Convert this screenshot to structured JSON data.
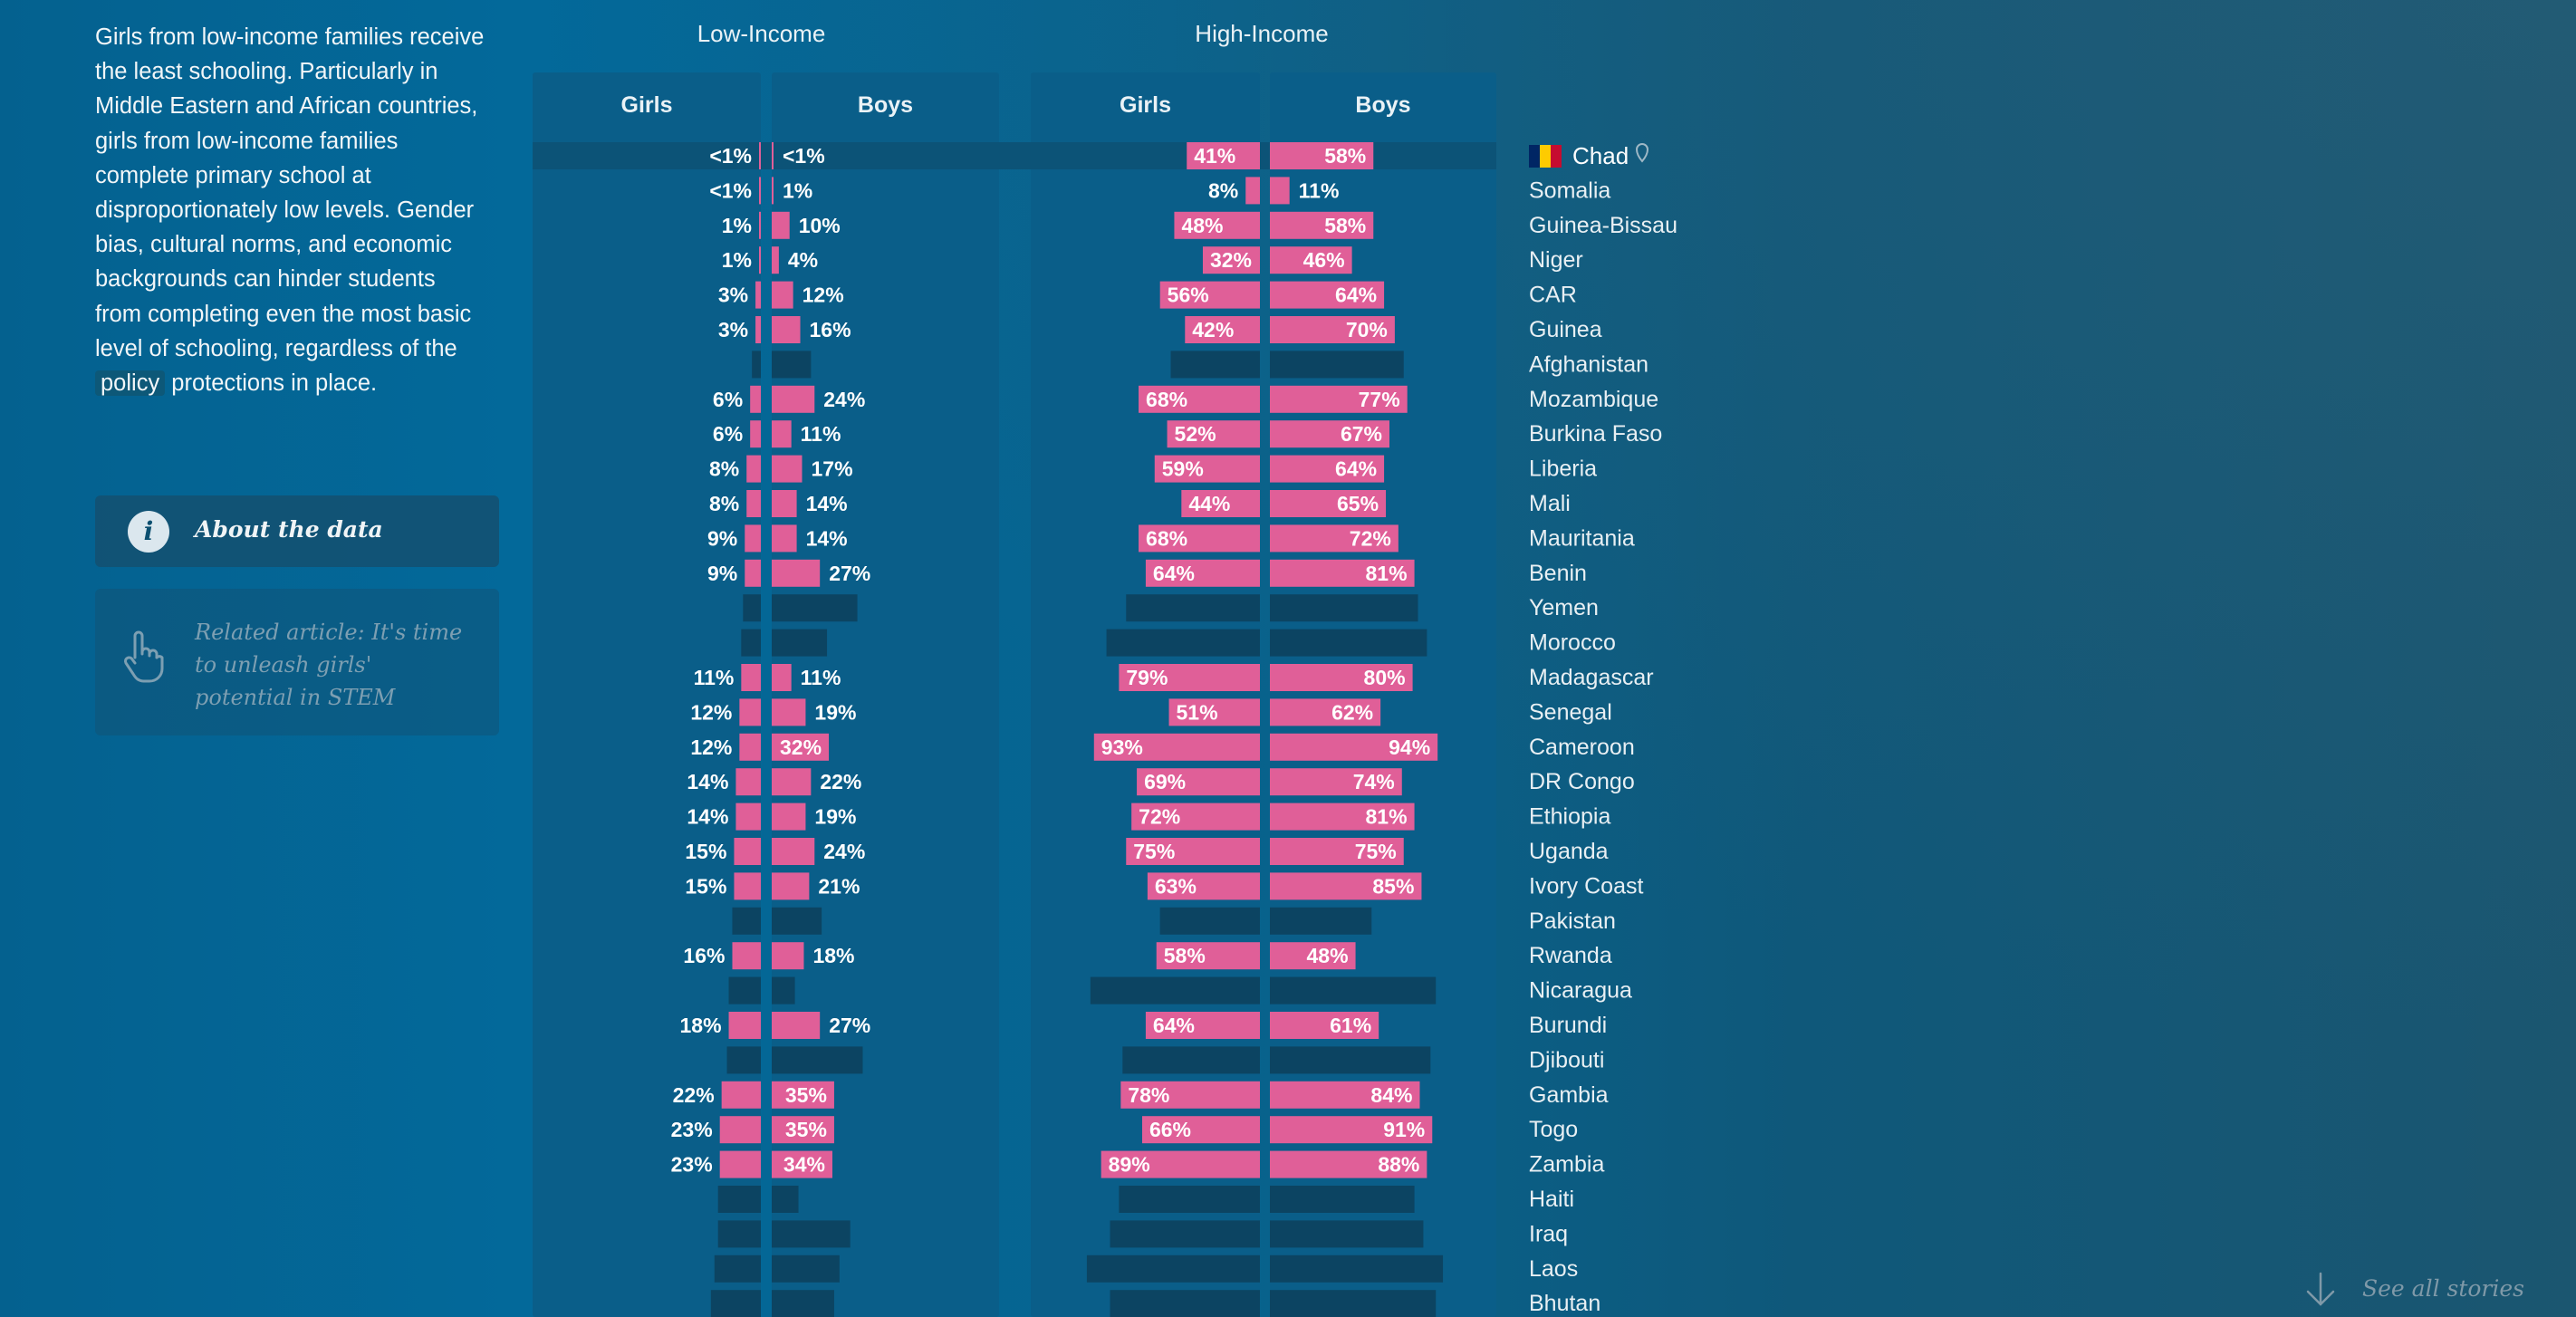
{
  "intro": {
    "text_before": "Girls from low-income families receive the least schooling. Particularly in Middle Eastern and African countries, girls from low-income families complete primary school at disproportionately low levels. Gender bias, cultural norms, and economic backgrounds can hinder students from completing even the most basic level of schooling, regardless of the",
    "highlight": "policy",
    "text_after": "protections in place."
  },
  "about_label": "About the data",
  "related_label": "Related article: It's time to unleash girls' potential in STEM",
  "see_all_label": "See all stories",
  "icons": {
    "about": "info-icon",
    "related": "pointing-hand-icon",
    "see_all": "arrow-down-icon",
    "flag": "chad-flag-icon",
    "marker": "location-pin-icon"
  },
  "colors": {
    "bar": "#e05f98",
    "track": "#0a5e89",
    "missing": "#0c4462",
    "row_highlight": "#0c5377"
  },
  "chart_data": {
    "type": "bar",
    "orientation": "horizontal-butterfly",
    "groups": [
      {
        "name": "Low-Income",
        "series": [
          "Girls",
          "Boys"
        ]
      },
      {
        "name": "High-Income",
        "series": [
          "Girls",
          "Boys"
        ]
      }
    ],
    "value_unit": "%",
    "highlighted_country": "Chad",
    "countries": [
      {
        "name": "Chad",
        "low": {
          "girls": {
            "v": 0.5,
            "label": "<1%"
          },
          "boys": {
            "v": 0.5,
            "label": "<1%"
          }
        },
        "high": {
          "girls": {
            "v": 41,
            "label": "41%"
          },
          "boys": {
            "v": 58,
            "label": "58%"
          }
        }
      },
      {
        "name": "Somalia",
        "low": {
          "girls": {
            "v": 0.5,
            "label": "<1%"
          },
          "boys": {
            "v": 1,
            "label": "1%"
          }
        },
        "high": {
          "girls": {
            "v": 8,
            "label": "8%"
          },
          "boys": {
            "v": 11,
            "label": "11%"
          }
        }
      },
      {
        "name": "Guinea-Bissau",
        "low": {
          "girls": {
            "v": 1,
            "label": "1%"
          },
          "boys": {
            "v": 10,
            "label": "10%"
          }
        },
        "high": {
          "girls": {
            "v": 48,
            "label": "48%"
          },
          "boys": {
            "v": 58,
            "label": "58%"
          }
        }
      },
      {
        "name": "Niger",
        "low": {
          "girls": {
            "v": 1,
            "label": "1%"
          },
          "boys": {
            "v": 4,
            "label": "4%"
          }
        },
        "high": {
          "girls": {
            "v": 32,
            "label": "32%"
          },
          "boys": {
            "v": 46,
            "label": "46%"
          }
        }
      },
      {
        "name": "CAR",
        "low": {
          "girls": {
            "v": 3,
            "label": "3%"
          },
          "boys": {
            "v": 12,
            "label": "12%"
          }
        },
        "high": {
          "girls": {
            "v": 56,
            "label": "56%"
          },
          "boys": {
            "v": 64,
            "label": "64%"
          }
        }
      },
      {
        "name": "Guinea",
        "low": {
          "girls": {
            "v": 3,
            "label": "3%"
          },
          "boys": {
            "v": 16,
            "label": "16%"
          }
        },
        "high": {
          "girls": {
            "v": 42,
            "label": "42%"
          },
          "boys": {
            "v": 70,
            "label": "70%"
          }
        }
      },
      {
        "name": "Afghanistan",
        "missing": true,
        "placeholder": {
          "low_girls": 5,
          "low_boys": 22,
          "high_girls": 50,
          "high_boys": 75
        }
      },
      {
        "name": "Mozambique",
        "low": {
          "girls": {
            "v": 6,
            "label": "6%"
          },
          "boys": {
            "v": 24,
            "label": "24%"
          }
        },
        "high": {
          "girls": {
            "v": 68,
            "label": "68%"
          },
          "boys": {
            "v": 77,
            "label": "77%"
          }
        }
      },
      {
        "name": "Burkina Faso",
        "low": {
          "girls": {
            "v": 6,
            "label": "6%"
          },
          "boys": {
            "v": 11,
            "label": "11%"
          }
        },
        "high": {
          "girls": {
            "v": 52,
            "label": "52%"
          },
          "boys": {
            "v": 67,
            "label": "67%"
          }
        }
      },
      {
        "name": "Liberia",
        "low": {
          "girls": {
            "v": 8,
            "label": "8%"
          },
          "boys": {
            "v": 17,
            "label": "17%"
          }
        },
        "high": {
          "girls": {
            "v": 59,
            "label": "59%"
          },
          "boys": {
            "v": 64,
            "label": "64%"
          }
        }
      },
      {
        "name": "Mali",
        "low": {
          "girls": {
            "v": 8,
            "label": "8%"
          },
          "boys": {
            "v": 14,
            "label": "14%"
          }
        },
        "high": {
          "girls": {
            "v": 44,
            "label": "44%"
          },
          "boys": {
            "v": 65,
            "label": "65%"
          }
        }
      },
      {
        "name": "Mauritania",
        "low": {
          "girls": {
            "v": 9,
            "label": "9%"
          },
          "boys": {
            "v": 14,
            "label": "14%"
          }
        },
        "high": {
          "girls": {
            "v": 68,
            "label": "68%"
          },
          "boys": {
            "v": 72,
            "label": "72%"
          }
        }
      },
      {
        "name": "Benin",
        "low": {
          "girls": {
            "v": 9,
            "label": "9%"
          },
          "boys": {
            "v": 27,
            "label": "27%"
          }
        },
        "high": {
          "girls": {
            "v": 64,
            "label": "64%"
          },
          "boys": {
            "v": 81,
            "label": "81%"
          }
        }
      },
      {
        "name": "Yemen",
        "missing": true,
        "placeholder": {
          "low_girls": 10,
          "low_boys": 48,
          "high_girls": 75,
          "high_boys": 83
        }
      },
      {
        "name": "Morocco",
        "missing": true,
        "placeholder": {
          "low_girls": 11,
          "low_boys": 31,
          "high_girls": 86,
          "high_boys": 88
        }
      },
      {
        "name": "Madagascar",
        "low": {
          "girls": {
            "v": 11,
            "label": "11%"
          },
          "boys": {
            "v": 11,
            "label": "11%"
          }
        },
        "high": {
          "girls": {
            "v": 79,
            "label": "79%"
          },
          "boys": {
            "v": 80,
            "label": "80%"
          }
        }
      },
      {
        "name": "Senegal",
        "low": {
          "girls": {
            "v": 12,
            "label": "12%"
          },
          "boys": {
            "v": 19,
            "label": "19%"
          }
        },
        "high": {
          "girls": {
            "v": 51,
            "label": "51%"
          },
          "boys": {
            "v": 62,
            "label": "62%"
          }
        }
      },
      {
        "name": "Cameroon",
        "low": {
          "girls": {
            "v": 12,
            "label": "12%"
          },
          "boys": {
            "v": 32,
            "label": "32%"
          }
        },
        "high": {
          "girls": {
            "v": 93,
            "label": "93%"
          },
          "boys": {
            "v": 94,
            "label": "94%"
          }
        }
      },
      {
        "name": "DR Congo",
        "low": {
          "girls": {
            "v": 14,
            "label": "14%"
          },
          "boys": {
            "v": 22,
            "label": "22%"
          }
        },
        "high": {
          "girls": {
            "v": 69,
            "label": "69%"
          },
          "boys": {
            "v": 74,
            "label": "74%"
          }
        }
      },
      {
        "name": "Ethiopia",
        "low": {
          "girls": {
            "v": 14,
            "label": "14%"
          },
          "boys": {
            "v": 19,
            "label": "19%"
          }
        },
        "high": {
          "girls": {
            "v": 72,
            "label": "72%"
          },
          "boys": {
            "v": 81,
            "label": "81%"
          }
        }
      },
      {
        "name": "Uganda",
        "low": {
          "girls": {
            "v": 15,
            "label": "15%"
          },
          "boys": {
            "v": 24,
            "label": "24%"
          }
        },
        "high": {
          "girls": {
            "v": 75,
            "label": "75%"
          },
          "boys": {
            "v": 75,
            "label": "75%"
          }
        }
      },
      {
        "name": "Ivory Coast",
        "low": {
          "girls": {
            "v": 15,
            "label": "15%"
          },
          "boys": {
            "v": 21,
            "label": "21%"
          }
        },
        "high": {
          "girls": {
            "v": 63,
            "label": "63%"
          },
          "boys": {
            "v": 85,
            "label": "85%"
          }
        }
      },
      {
        "name": "Pakistan",
        "missing": true,
        "placeholder": {
          "low_girls": 16,
          "low_boys": 28,
          "high_girls": 56,
          "high_boys": 57
        }
      },
      {
        "name": "Rwanda",
        "low": {
          "girls": {
            "v": 16,
            "label": "16%"
          },
          "boys": {
            "v": 18,
            "label": "18%"
          }
        },
        "high": {
          "girls": {
            "v": 58,
            "label": "58%"
          },
          "boys": {
            "v": 48,
            "label": "48%"
          }
        }
      },
      {
        "name": "Nicaragua",
        "missing": true,
        "placeholder": {
          "low_girls": 18,
          "low_boys": 13,
          "high_girls": 95,
          "high_boys": 93
        }
      },
      {
        "name": "Burundi",
        "low": {
          "girls": {
            "v": 18,
            "label": "18%"
          },
          "boys": {
            "v": 27,
            "label": "27%"
          }
        },
        "high": {
          "girls": {
            "v": 64,
            "label": "64%"
          },
          "boys": {
            "v": 61,
            "label": "61%"
          }
        }
      },
      {
        "name": "Djibouti",
        "missing": true,
        "placeholder": {
          "low_girls": 19,
          "low_boys": 51,
          "high_girls": 77,
          "high_boys": 90
        }
      },
      {
        "name": "Gambia",
        "low": {
          "girls": {
            "v": 22,
            "label": "22%"
          },
          "boys": {
            "v": 35,
            "label": "35%"
          }
        },
        "high": {
          "girls": {
            "v": 78,
            "label": "78%"
          },
          "boys": {
            "v": 84,
            "label": "84%"
          }
        }
      },
      {
        "name": "Togo",
        "low": {
          "girls": {
            "v": 23,
            "label": "23%"
          },
          "boys": {
            "v": 35,
            "label": "35%"
          }
        },
        "high": {
          "girls": {
            "v": 66,
            "label": "66%"
          },
          "boys": {
            "v": 91,
            "label": "91%"
          }
        }
      },
      {
        "name": "Zambia",
        "low": {
          "girls": {
            "v": 23,
            "label": "23%"
          },
          "boys": {
            "v": 34,
            "label": "34%"
          }
        },
        "high": {
          "girls": {
            "v": 89,
            "label": "89%"
          },
          "boys": {
            "v": 88,
            "label": "88%"
          }
        }
      },
      {
        "name": "Haiti",
        "missing": true,
        "placeholder": {
          "low_girls": 24,
          "low_boys": 15,
          "high_girls": 79,
          "high_boys": 81
        }
      },
      {
        "name": "Iraq",
        "missing": true,
        "placeholder": {
          "low_girls": 24,
          "low_boys": 44,
          "high_girls": 84,
          "high_boys": 86
        }
      },
      {
        "name": "Laos",
        "missing": true,
        "placeholder": {
          "low_girls": 26,
          "low_boys": 38,
          "high_girls": 97,
          "high_boys": 97
        }
      },
      {
        "name": "Bhutan",
        "missing": true,
        "placeholder": {
          "low_girls": 28,
          "low_boys": 35,
          "high_girls": 84,
          "high_boys": 93
        }
      }
    ]
  }
}
